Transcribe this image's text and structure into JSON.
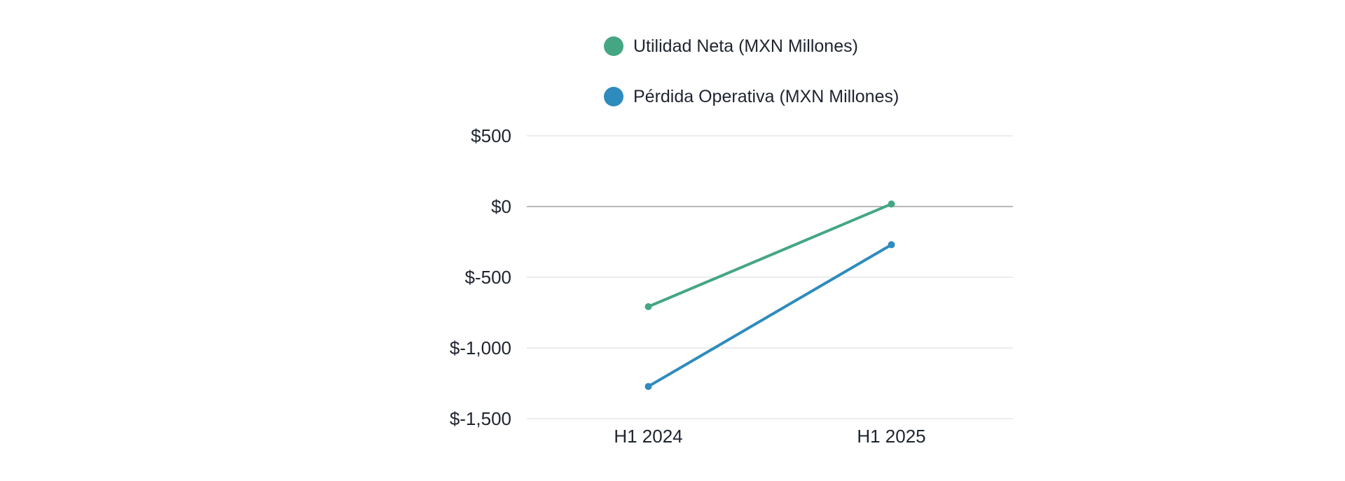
{
  "chart_data": {
    "type": "line",
    "categories": [
      "H1 2024",
      "H1 2025"
    ],
    "series": [
      {
        "name": "Utilidad Neta (MXN Millones)",
        "color": "#45a684",
        "values": [
          -708,
          18
        ]
      },
      {
        "name": "Pérdida Operativa (MXN Millones)",
        "color": "#2e8bbd",
        "values": [
          -1272,
          -270
        ]
      }
    ],
    "ylim": [
      -1500,
      500
    ],
    "yticks": [
      500,
      0,
      -500,
      -1000,
      -1500
    ],
    "ytick_labels": [
      "$500",
      "$0",
      "$-500",
      "$-1,000",
      "$-1,500"
    ],
    "legend_position": "top",
    "grid": true,
    "title": "",
    "xlabel": "",
    "ylabel": ""
  }
}
